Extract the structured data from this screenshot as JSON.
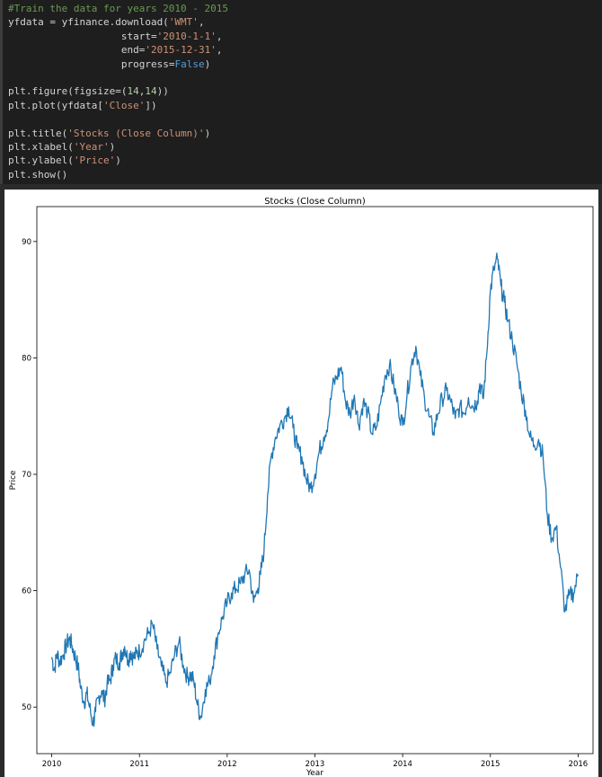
{
  "code_cell": {
    "comment": "#Train the data for years 2010 - 2015",
    "download_prefix": "yfdata = yfinance.download(",
    "ticker": "'WMT'",
    "start_key": "start=",
    "start_val": "'2010-1-1'",
    "end_key": "end=",
    "end_val": "'2015-12-31'",
    "progress_key": "progress=",
    "progress_val": "False",
    "figure_prefix": "plt.figure(figsize=(",
    "fig_w": "14",
    "fig_h": "14",
    "plot_prefix": "plt.plot(yfdata[",
    "plot_col": "'Close'",
    "title_prefix": "plt.title(",
    "title_arg": "'Stocks (Close Column)'",
    "xlabel_prefix": "plt.xlabel(",
    "xlabel_arg": "'Year'",
    "ylabel_prefix": "plt.ylabel(",
    "ylabel_arg": "'Price'",
    "show": "plt.show()"
  },
  "chart_data": {
    "type": "line",
    "title": "Stocks (Close Column)",
    "xlabel": "Year",
    "ylabel": "Price",
    "xlim": [
      2009.83,
      2016.17
    ],
    "ylim": [
      46,
      93
    ],
    "xticks": [
      2010,
      2011,
      2012,
      2013,
      2014,
      2015,
      2016
    ],
    "yticks": [
      50,
      60,
      70,
      80,
      90
    ],
    "grid": false,
    "line_color": "#1f77b4",
    "series": [
      {
        "x": [
          2010.0,
          2010.03,
          2010.06,
          2010.09,
          2010.13,
          2010.17,
          2010.2,
          2010.23,
          2010.27,
          2010.3,
          2010.33,
          2010.37,
          2010.4,
          2010.43,
          2010.47,
          2010.5,
          2010.53,
          2010.57,
          2010.6,
          2010.63,
          2010.67,
          2010.7,
          2010.73,
          2010.77,
          2010.8,
          2010.83,
          2010.87,
          2010.9,
          2010.93,
          2010.97,
          2011.0,
          2011.05,
          2011.1,
          2011.15,
          2011.2,
          2011.25,
          2011.3,
          2011.35,
          2011.4,
          2011.45,
          2011.5,
          2011.55,
          2011.58,
          2011.62,
          2011.66,
          2011.7,
          2011.75,
          2011.8,
          2011.85,
          2011.9,
          2011.95,
          2012.0,
          2012.05,
          2012.1,
          2012.15,
          2012.2,
          2012.25,
          2012.3,
          2012.35,
          2012.38,
          2012.42,
          2012.46,
          2012.5,
          2012.55,
          2012.6,
          2012.65,
          2012.7,
          2012.75,
          2012.8,
          2012.85,
          2012.9,
          2012.95,
          2013.0,
          2013.05,
          2013.1,
          2013.15,
          2013.2,
          2013.25,
          2013.3,
          2013.35,
          2013.4,
          2013.45,
          2013.5,
          2013.55,
          2013.6,
          2013.65,
          2013.7,
          2013.75,
          2013.8,
          2013.85,
          2013.9,
          2013.95,
          2014.0,
          2014.05,
          2014.1,
          2014.15,
          2014.2,
          2014.25,
          2014.3,
          2014.35,
          2014.4,
          2014.45,
          2014.5,
          2014.55,
          2014.6,
          2014.65,
          2014.7,
          2014.75,
          2014.8,
          2014.85,
          2014.88,
          2014.92,
          2014.96,
          2015.0,
          2015.04,
          2015.08,
          2015.12,
          2015.16,
          2015.2,
          2015.25,
          2015.3,
          2015.35,
          2015.4,
          2015.45,
          2015.5,
          2015.55,
          2015.6,
          2015.65,
          2015.7,
          2015.75,
          2015.8,
          2015.85,
          2015.9,
          2015.95,
          2016.0
        ],
        "y": [
          54.3,
          53.2,
          54.6,
          53.9,
          54.5,
          55.4,
          55.9,
          55.3,
          54.2,
          53.5,
          51.6,
          50.4,
          51.2,
          50.0,
          48.6,
          49.6,
          50.8,
          51.4,
          50.6,
          51.9,
          52.4,
          53.6,
          54.2,
          53.8,
          54.6,
          55.2,
          54.0,
          54.8,
          54.2,
          54.6,
          54.8,
          55.6,
          56.3,
          57.1,
          55.0,
          53.5,
          52.1,
          52.9,
          54.5,
          55.6,
          53.6,
          52.5,
          52.8,
          52.2,
          50.2,
          49.1,
          51.5,
          52.2,
          54.4,
          56.4,
          57.8,
          59.0,
          59.8,
          60.2,
          60.6,
          61.4,
          61.8,
          59.0,
          60.2,
          61.4,
          63.5,
          68.2,
          71.5,
          73.2,
          74.2,
          74.8,
          75.8,
          74.0,
          72.2,
          71.5,
          69.6,
          68.8,
          70.0,
          72.0,
          73.2,
          74.5,
          77.5,
          78.4,
          79.2,
          76.2,
          75.2,
          76.8,
          74.2,
          76.2,
          75.4,
          73.5,
          74.0,
          76.2,
          78.5,
          79.4,
          77.6,
          75.8,
          74.2,
          76.8,
          79.5,
          81.0,
          78.5,
          76.5,
          75.0,
          73.6,
          75.2,
          76.5,
          77.2,
          76.2,
          74.8,
          75.8,
          75.2,
          76.6,
          75.8,
          76.3,
          77.8,
          76.5,
          80.5,
          85.8,
          87.6,
          88.5,
          86.2,
          84.8,
          83.2,
          81.5,
          79.6,
          77.2,
          75.5,
          73.2,
          72.5,
          73.0,
          71.6,
          66.5,
          64.5,
          65.5,
          62.0,
          58.2,
          59.6,
          59.8,
          61.4
        ]
      }
    ]
  }
}
